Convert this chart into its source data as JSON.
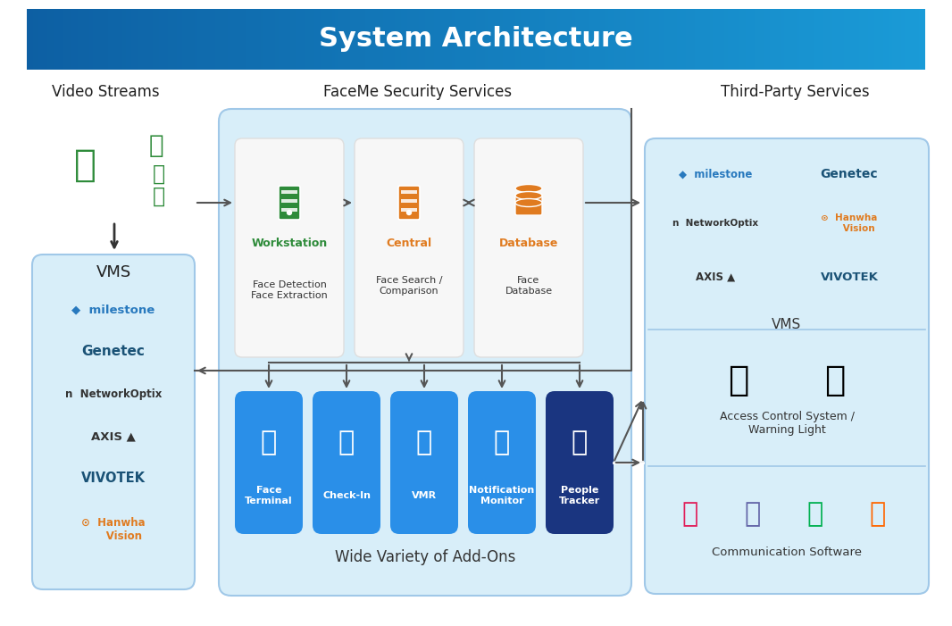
{
  "title": "System Architecture",
  "title_bg_left": "#0D5FA3",
  "title_bg_right": "#1A9BD7",
  "title_text_color": "#FFFFFF",
  "bg_color": "#FFFFFF",
  "col1_title": "Video Streams",
  "col2_title": "FaceMe Security Services",
  "col3_title": "Third-Party Services",
  "vms_box_color": "#D8EEF9",
  "vms_box_border": "#A0C8E8",
  "vms_title": "VMS",
  "faceme_box_color": "#D8EEF9",
  "faceme_box_border": "#A0C8E8",
  "workstation_color": "#2E8B3A",
  "central_color": "#E07B20",
  "database_color": "#E07B20",
  "addon_box_color": "#2A8FE8",
  "addon_dark_box_color": "#1A3580",
  "addon_text_color": "#FFFFFF",
  "addon_labels": [
    "Face\nTerminal",
    "Check-In",
    "VMR",
    "Notification\nMonitor",
    "People\nTracker"
  ],
  "arrow_color": "#555555",
  "third_party_box_color": "#D8EEF9",
  "third_party_box_border": "#A0C8E8",
  "access_title": "Access Control System /\nWarning Light",
  "comm_title": "Communication Software",
  "wide_variety_label": "Wide Variety of Add-Ons",
  "vms_label_right": "VMS"
}
